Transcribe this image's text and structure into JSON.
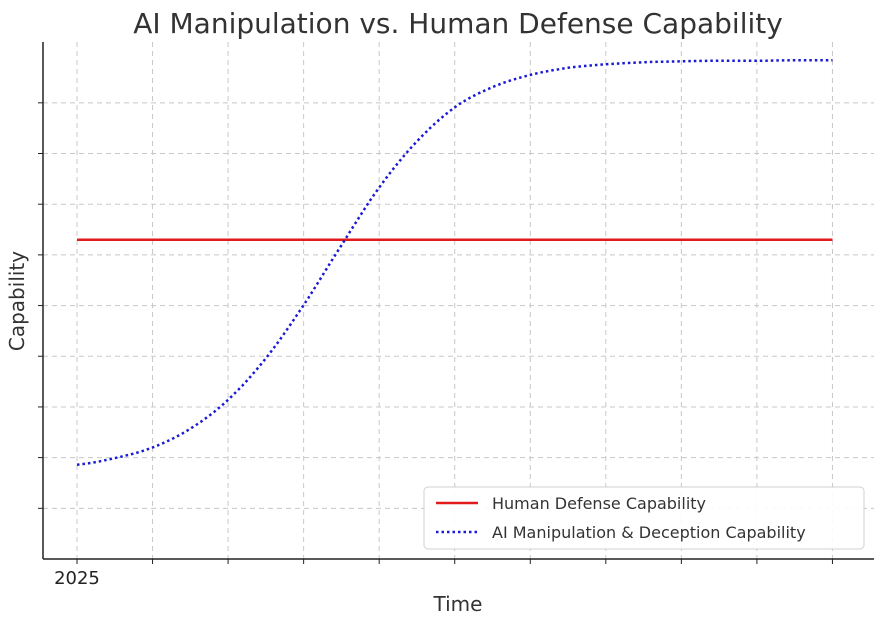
{
  "chart_data": {
    "type": "line",
    "title": "AI Manipulation vs. Human Defense Capability",
    "xlabel": "Time",
    "ylabel": "Capability",
    "xlim": [
      2024.55,
      2035.55
    ],
    "ylim": [
      0,
      10.2
    ],
    "x_ticks": [
      2025,
      2026,
      2027,
      2028,
      2029,
      2030,
      2031,
      2032,
      2033,
      2034,
      2035
    ],
    "x_tick_labels": [
      "2025"
    ],
    "y_ticks": [
      1,
      2,
      3,
      4,
      5,
      6,
      7,
      8,
      9
    ],
    "grid": true,
    "legend_position": "bottom-right",
    "series": [
      {
        "name": "Human Defense Capability",
        "color": "#e31a1c",
        "style": "solid",
        "x": [
          2025,
          2035
        ],
        "y": [
          6.3,
          6.3
        ]
      },
      {
        "name": "AI Manipulation & Deception Capability",
        "color": "#1a1ad6",
        "style": "dotted",
        "x": [
          2025,
          2025.5,
          2026,
          2026.5,
          2027,
          2027.5,
          2028,
          2028.5,
          2029,
          2029.5,
          2030,
          2030.5,
          2031,
          2031.5,
          2032,
          2032.5,
          2033,
          2033.5,
          2034,
          2034.5,
          2035
        ],
        "y": [
          1.86,
          1.99,
          2.2,
          2.57,
          3.14,
          3.96,
          5.01,
          6.19,
          7.33,
          8.24,
          8.91,
          9.31,
          9.55,
          9.69,
          9.76,
          9.8,
          9.82,
          9.83,
          9.83,
          9.84,
          9.84
        ]
      }
    ]
  }
}
